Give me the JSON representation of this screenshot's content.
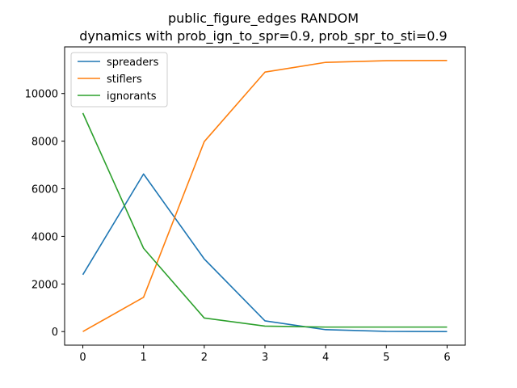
{
  "chart_data": {
    "type": "line",
    "title": "public_figure_edges RANDOM",
    "subtitle": "dynamics with prob_ign_to_spr=0.9, prob_spr_to_sti=0.9",
    "xlabel": "",
    "ylabel": "",
    "x": [
      0,
      1,
      2,
      3,
      4,
      5,
      6
    ],
    "xlim": [
      -0.3,
      6.3
    ],
    "ylim": [
      -570,
      11960
    ],
    "xticks": [
      0,
      1,
      2,
      3,
      4,
      5,
      6
    ],
    "yticks": [
      0,
      2000,
      4000,
      6000,
      8000,
      10000
    ],
    "grid": false,
    "legend": "top-left",
    "series": [
      {
        "name": "spreaders",
        "color": "#1f77b4",
        "values": [
          2390,
          6620,
          3050,
          450,
          80,
          10,
          0
        ]
      },
      {
        "name": "stiflers",
        "color": "#ff7f0e",
        "values": [
          0,
          1440,
          7980,
          10900,
          11310,
          11380,
          11390
        ]
      },
      {
        "name": "ignorants",
        "color": "#2ca02c",
        "values": [
          9180,
          3500,
          570,
          230,
          190,
          190,
          190
        ]
      }
    ]
  }
}
